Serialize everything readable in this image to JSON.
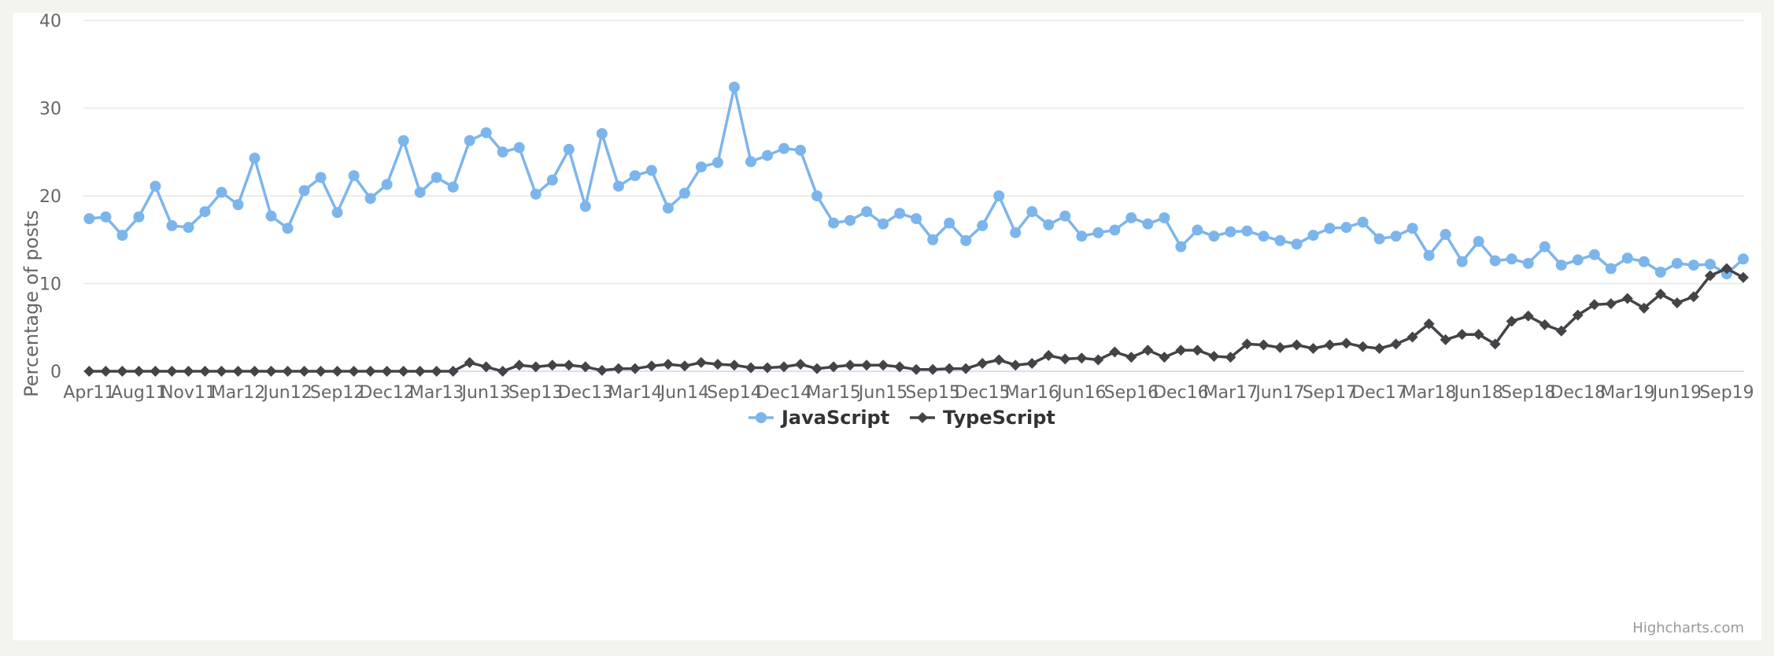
{
  "chart_data": {
    "type": "line",
    "title": "",
    "xlabel": "",
    "ylabel": "Percentage of posts",
    "ylim": [
      0,
      40
    ],
    "y_ticks": [
      0,
      10,
      20,
      30,
      40
    ],
    "x_tick_labels": [
      "Apr11",
      "Aug11",
      "Nov11",
      "Mar12",
      "Jun12",
      "Sep12",
      "Dec12",
      "Mar13",
      "Jun13",
      "Sep13",
      "Dec13",
      "Mar14",
      "Jun14",
      "Sep14",
      "Dec14",
      "Mar15",
      "Jun15",
      "Sep15",
      "Dec15",
      "Mar16",
      "Jun16",
      "Sep16",
      "Dec16",
      "Mar17",
      "Jun17",
      "Sep17",
      "Dec17",
      "Mar18",
      "Jun18",
      "Sep18",
      "Dec18",
      "Mar19",
      "Jun19",
      "Sep19"
    ],
    "grid": "horizontal",
    "legend_position": "bottom-center",
    "series": [
      {
        "name": "JavaScript",
        "color": "#7cb5ec",
        "marker": "circle",
        "values": [
          17.4,
          17.6,
          15.5,
          17.6,
          21.1,
          16.6,
          16.4,
          18.2,
          20.4,
          19.0,
          24.3,
          17.7,
          16.3,
          20.6,
          22.1,
          18.1,
          22.3,
          19.7,
          21.3,
          26.3,
          20.4,
          22.1,
          21.0,
          26.3,
          27.2,
          25.0,
          25.5,
          20.2,
          21.8,
          25.3,
          18.8,
          27.1,
          21.1,
          22.3,
          22.9,
          18.6,
          20.3,
          23.3,
          23.8,
          32.4,
          23.9,
          24.6,
          25.4,
          25.2,
          20.0,
          16.9,
          17.2,
          18.2,
          16.8,
          18.0,
          17.4,
          15.0,
          16.9,
          14.9,
          16.6,
          20.0,
          15.8,
          18.2,
          16.7,
          17.7,
          15.4,
          15.8,
          16.1,
          17.5,
          16.8,
          17.5,
          14.2,
          16.1,
          15.4,
          15.9,
          16.0,
          15.4,
          14.9,
          14.5,
          15.5,
          16.3,
          16.4,
          17.0,
          15.1,
          15.4,
          16.3,
          13.2,
          15.6,
          12.5,
          14.8,
          12.6,
          12.8,
          12.3,
          14.2,
          12.1,
          12.7,
          13.3,
          11.7,
          12.9,
          12.5,
          11.3,
          12.3,
          12.1,
          12.2,
          11.1,
          12.8
        ]
      },
      {
        "name": "TypeScript",
        "color": "#434348",
        "marker": "diamond",
        "values": [
          0,
          0,
          0,
          0,
          0,
          0,
          0,
          0,
          0,
          0,
          0,
          0,
          0,
          0,
          0,
          0,
          0,
          0,
          0,
          0,
          0,
          0,
          0,
          1.0,
          0.5,
          0,
          0.7,
          0.5,
          0.7,
          0.7,
          0.5,
          0.1,
          0.3,
          0.3,
          0.6,
          0.8,
          0.6,
          1.0,
          0.8,
          0.7,
          0.4,
          0.4,
          0.5,
          0.8,
          0.3,
          0.5,
          0.7,
          0.7,
          0.7,
          0.5,
          0.2,
          0.2,
          0.3,
          0.3,
          0.9,
          1.3,
          0.7,
          0.9,
          1.8,
          1.4,
          1.5,
          1.3,
          2.2,
          1.6,
          2.4,
          1.6,
          2.4,
          2.4,
          1.7,
          1.6,
          3.1,
          3.0,
          2.7,
          3.0,
          2.6,
          3.0,
          3.2,
          2.8,
          2.6,
          3.1,
          3.9,
          5.4,
          3.6,
          4.2,
          4.2,
          3.1,
          5.7,
          6.3,
          5.3,
          4.6,
          6.4,
          7.6,
          7.7,
          8.3,
          7.2,
          8.8,
          7.8,
          8.5,
          10.9,
          11.7,
          10.7
        ]
      }
    ]
  },
  "credits": "Highcharts.com"
}
